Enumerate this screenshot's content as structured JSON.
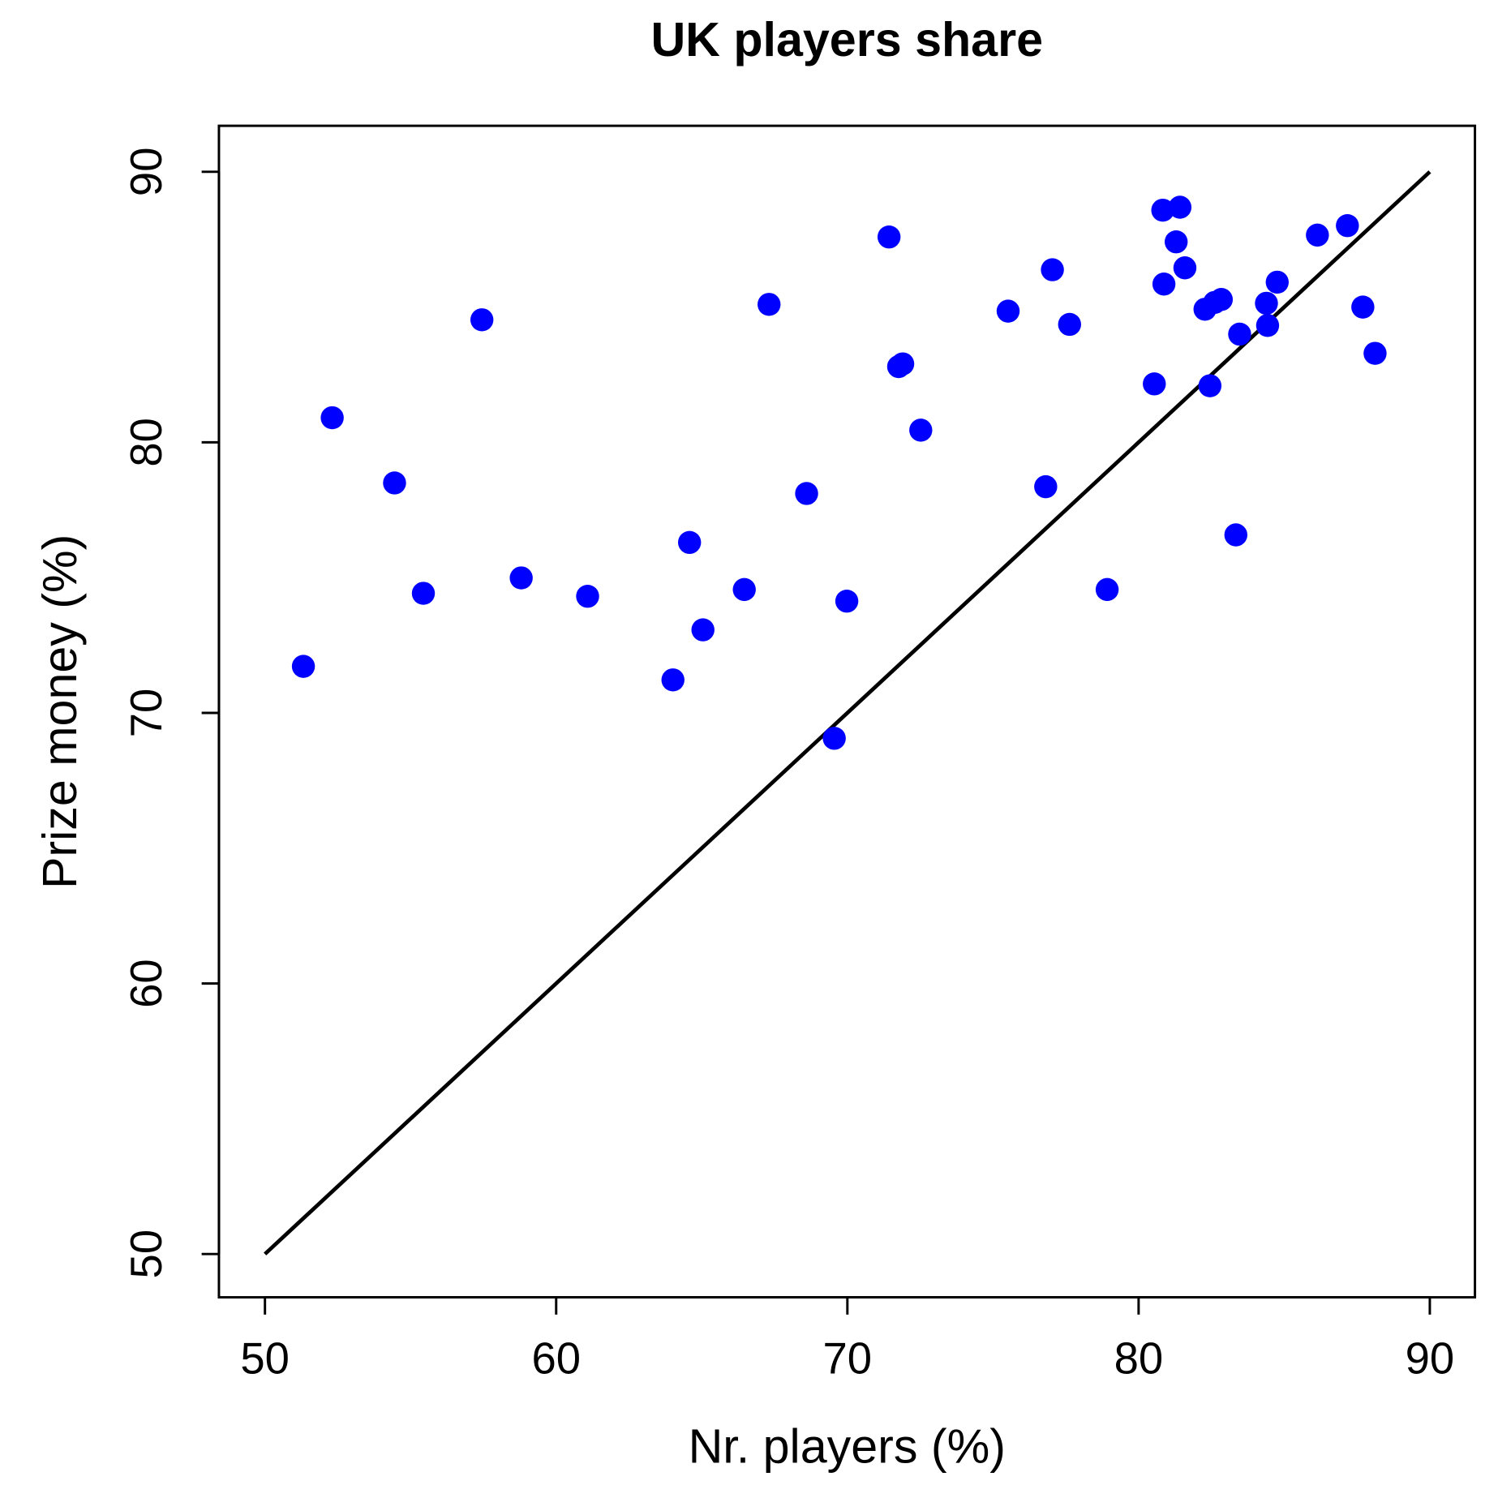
{
  "chart_data": {
    "type": "scatter",
    "title": "UK players share",
    "x_label": "Nr. players (%)",
    "y_label": "Prize money (%)",
    "x": [
      51.32,
      52.31,
      54.45,
      55.44,
      57.45,
      58.8,
      61.08,
      64.01,
      64.58,
      65.04,
      66.46,
      67.31,
      68.6,
      69.55,
      69.98,
      71.43,
      71.76,
      71.9,
      72.52,
      75.52,
      76.81,
      77.04,
      77.63,
      78.92,
      80.54,
      80.83,
      80.87,
      81.29,
      81.42,
      81.59,
      82.28,
      82.45,
      82.61,
      82.84,
      83.34,
      83.47,
      84.39,
      84.43,
      84.76,
      86.14,
      87.17,
      87.7,
      88.12
    ],
    "y": [
      71.72,
      80.91,
      78.5,
      74.42,
      84.53,
      74.99,
      74.31,
      71.22,
      76.3,
      73.07,
      74.56,
      85.1,
      78.11,
      69.06,
      74.13,
      87.59,
      82.8,
      82.9,
      80.45,
      84.85,
      78.36,
      86.38,
      84.36,
      74.56,
      82.16,
      88.58,
      85.85,
      87.41,
      88.69,
      86.45,
      84.92,
      82.09,
      85.17,
      85.28,
      76.58,
      84.0,
      85.14,
      84.32,
      85.92,
      87.66,
      88.01,
      85.0,
      83.29
    ],
    "color": "#0000ff",
    "reference_line": {
      "x": [
        50,
        90
      ],
      "y": [
        50,
        90
      ],
      "color": "#000000"
    },
    "xlim": [
      48.42,
      91.55
    ],
    "ylim": [
      48.4,
      91.7
    ],
    "xticks": [
      50,
      60,
      70,
      80,
      90
    ],
    "yticks": [
      50,
      60,
      70,
      80,
      90
    ]
  }
}
